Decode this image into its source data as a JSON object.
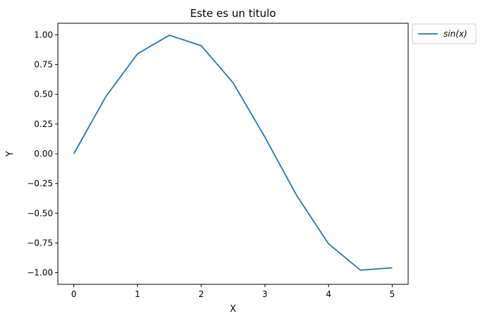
{
  "chart_data": {
    "type": "line",
    "title": "Este es un titulo",
    "xlabel": "X",
    "ylabel": "Y",
    "xlim": [
      -0.25,
      5.25
    ],
    "ylim": [
      -1.0975,
      1.0975
    ],
    "x_ticks": [
      0,
      1,
      2,
      3,
      4,
      5
    ],
    "x_tick_labels": [
      "0",
      "1",
      "2",
      "3",
      "4",
      "5"
    ],
    "y_ticks": [
      1.0,
      0.75,
      0.5,
      0.25,
      0.0,
      -0.25,
      -0.5,
      -0.75,
      -1.0
    ],
    "y_tick_labels": [
      "1.00",
      "0.75",
      "0.50",
      "0.25",
      "0.00",
      "−0.25",
      "−0.50",
      "−0.75",
      "−1.00"
    ],
    "grid": false,
    "legend_position": "outside-top-right",
    "series": [
      {
        "name": "sin(x)",
        "color": "#1f77b4",
        "x": [
          0,
          0.5,
          1.0,
          1.5,
          2.0,
          2.5,
          3.0,
          3.5,
          4.0,
          4.5,
          5.0
        ],
        "y": [
          0.0,
          0.479,
          0.841,
          0.997,
          0.909,
          0.598,
          0.141,
          -0.351,
          -0.757,
          -0.978,
          -0.959
        ]
      }
    ]
  }
}
